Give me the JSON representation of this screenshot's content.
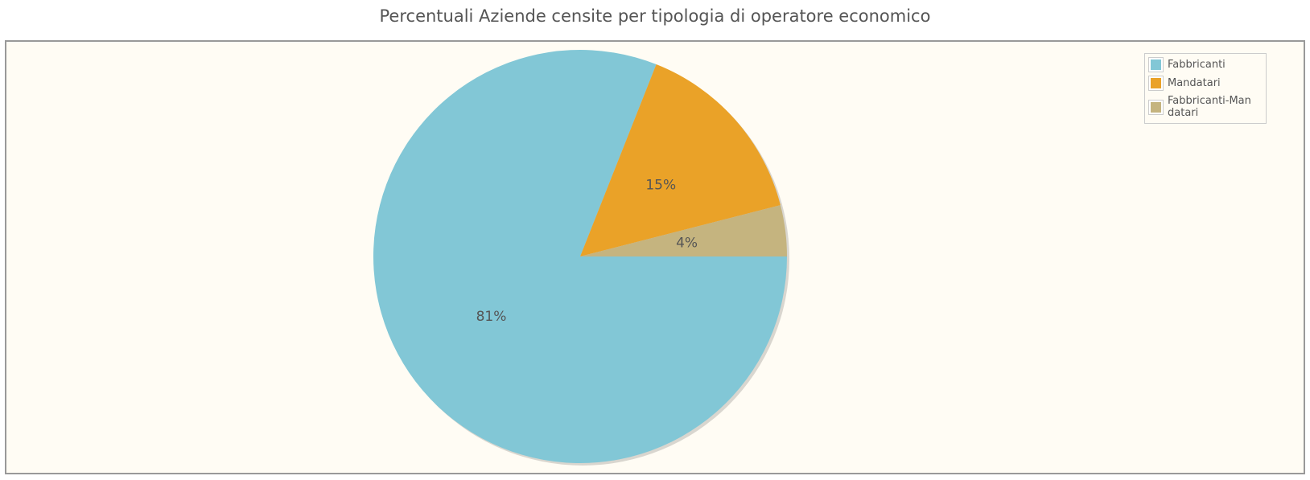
{
  "chart_data": {
    "type": "pie",
    "title": "Percentuali Aziende censite per tipologia di operatore economico",
    "categories": [
      "Fabbricanti",
      "Mandatari",
      "Fabbricanti-Mandatari"
    ],
    "values": [
      81,
      15,
      4
    ],
    "value_labels": [
      "81%",
      "15%",
      "4%"
    ],
    "colors": [
      "#82c7d6",
      "#eaa228",
      "#c5b47f"
    ],
    "legend": "top-right"
  }
}
